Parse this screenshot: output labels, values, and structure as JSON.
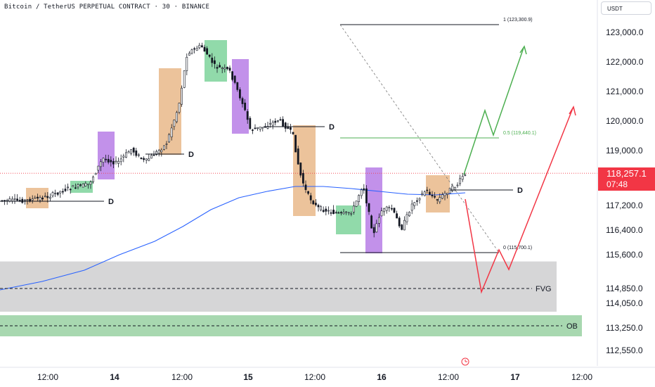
{
  "header": {
    "title": "Bitcoin / TetherUS PERPETUAL CONTRACT · 30 · BINANCE",
    "currency": "USDT"
  },
  "last_price": {
    "price": "118,257.1",
    "countdown": "07:48"
  },
  "colors": {
    "up": "#131722",
    "down": "#131722",
    "ma": "#2962ff",
    "orange_box": "#e9b98a",
    "green_box": "#7ed39b",
    "purple_box": "#b77ee6",
    "fvg_zone": "#d1d1d3",
    "ob_zone": "#9fd4a7",
    "fib_green": "#4caf50",
    "arrow_green": "#4caf50",
    "arrow_red": "#f23645",
    "badge_red": "#f23645"
  },
  "chart_data": {
    "type": "candlestick",
    "y_ticks": [
      "123,000.0",
      "122,000.0",
      "121,000.0",
      "120,000.0",
      "119,000.0",
      "117,200.0",
      "116,400.0",
      "115,600.0",
      "114,850.0",
      "114,050.0",
      "113,250.0",
      "112,550.0"
    ],
    "y_tick_values": [
      123000,
      122000,
      121000,
      120000,
      119000,
      117200,
      116400,
      115600,
      114850,
      114050,
      113250,
      112550
    ],
    "x_ticks": [
      "12:00",
      "14",
      "12:00",
      "15",
      "12:00",
      "16",
      "12:00",
      "17",
      "12:00"
    ],
    "levels": [
      {
        "label": "D",
        "price": 117300
      },
      {
        "label": "D",
        "price": 118900
      },
      {
        "label": "D",
        "price": 119800
      },
      {
        "label": "D",
        "price": 117900
      },
      {
        "label": "FVG",
        "price": 114850
      },
      {
        "label": "OB",
        "price": 113250
      }
    ],
    "fib": [
      {
        "label": "1 (123,300.9)",
        "price": 123300.9
      },
      {
        "label": "0.5 (119,440.1)",
        "price": 119440.1
      },
      {
        "label": "0 (115,700.1)",
        "price": 115700.1
      }
    ],
    "zones": [
      {
        "label": "FVG",
        "from": 114050,
        "to": 115450
      },
      {
        "label": "OB",
        "from": 113100,
        "to": 113450
      }
    ],
    "last_price": 118257.1
  }
}
